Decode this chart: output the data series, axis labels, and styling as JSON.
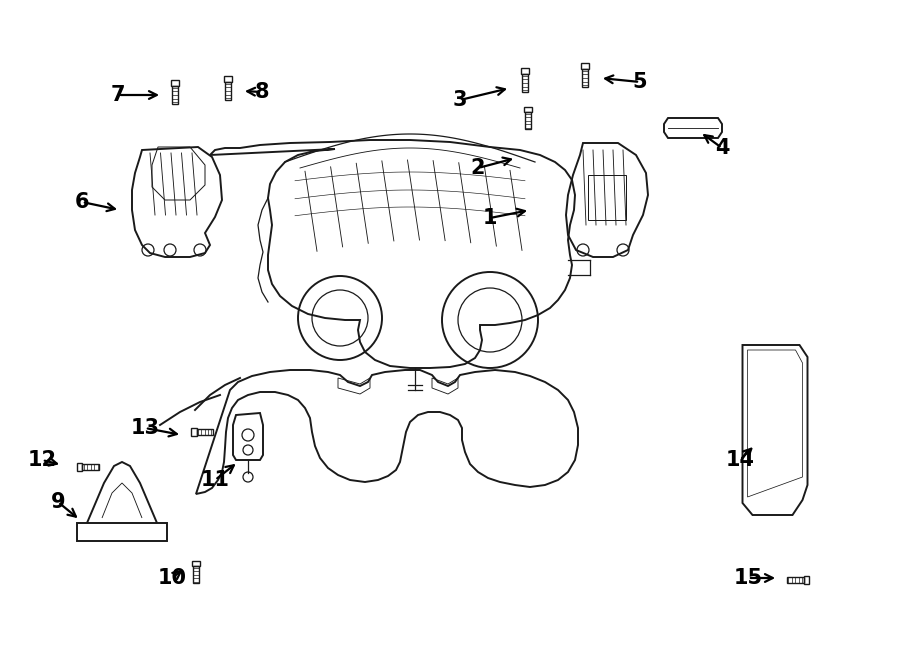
{
  "bg_color": "#ffffff",
  "line_color": "#1a1a1a",
  "label_color": "#000000",
  "fig_width": 9.0,
  "fig_height": 6.62,
  "dpi": 100
}
